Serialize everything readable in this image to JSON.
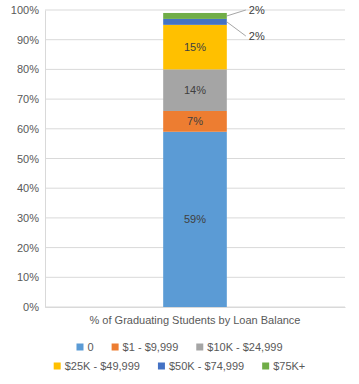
{
  "chart_data": {
    "type": "bar",
    "stacked": true,
    "data_labels": true,
    "grid": true,
    "legend": "bottom",
    "categories": [
      "% of Graduating Students by Loan Balance"
    ],
    "series": [
      {
        "name": "0",
        "color": "#5b9bd5",
        "values": [
          59
        ],
        "value_labels": [
          "59%"
        ]
      },
      {
        "name": "$1 - $9,999",
        "color": "#ed7d31",
        "values": [
          7
        ],
        "value_labels": [
          "7%"
        ]
      },
      {
        "name": "$10K - $24,999",
        "color": "#a5a5a5",
        "values": [
          14
        ],
        "value_labels": [
          "14%"
        ]
      },
      {
        "name": "$25K - $49,999",
        "color": "#ffc000",
        "values": [
          15
        ],
        "value_labels": [
          "15%"
        ]
      },
      {
        "name": "$50K - $74,999",
        "color": "#4472c4",
        "values": [
          2
        ],
        "value_labels": [
          "2%"
        ]
      },
      {
        "name": "$75K+",
        "color": "#70ad47",
        "values": [
          2
        ],
        "value_labels": [
          "2%"
        ]
      }
    ],
    "ylim": [
      0,
      100
    ],
    "yticks": [
      {
        "value": 0,
        "label": "0%"
      },
      {
        "value": 10,
        "label": "10%"
      },
      {
        "value": 20,
        "label": "20%"
      },
      {
        "value": 30,
        "label": "30%"
      },
      {
        "value": 40,
        "label": "40%"
      },
      {
        "value": 50,
        "label": "50%"
      },
      {
        "value": 60,
        "label": "60%"
      },
      {
        "value": 70,
        "label": "70%"
      },
      {
        "value": 80,
        "label": "80%"
      },
      {
        "value": 90,
        "label": "90%"
      },
      {
        "value": 100,
        "label": "100%"
      }
    ]
  }
}
